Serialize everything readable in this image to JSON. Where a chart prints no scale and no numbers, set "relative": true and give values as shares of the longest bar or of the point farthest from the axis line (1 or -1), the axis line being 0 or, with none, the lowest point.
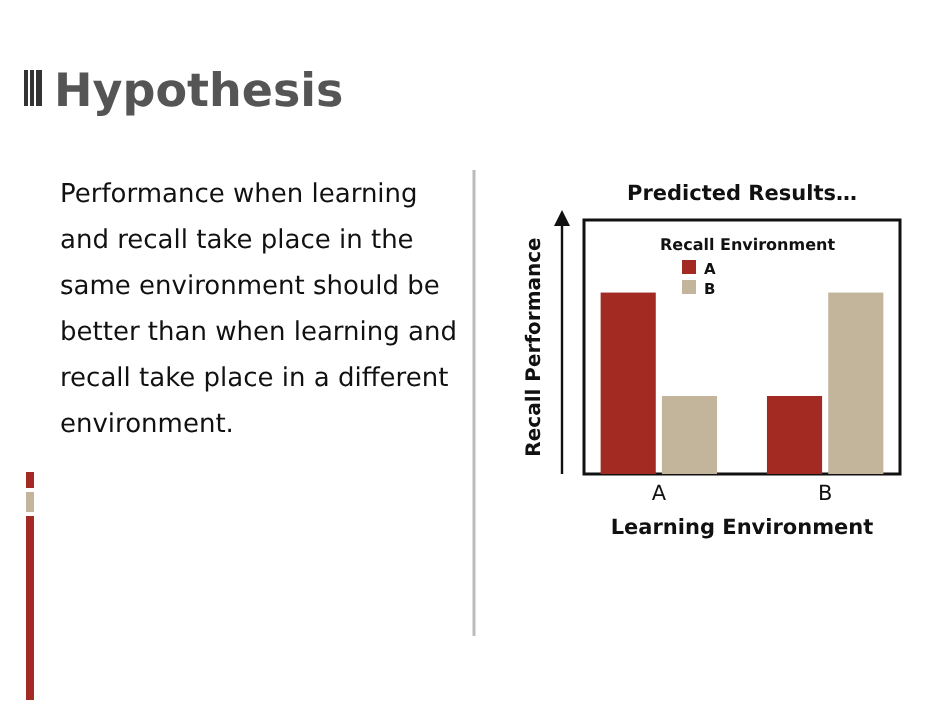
{
  "chart_data": {
    "type": "bar",
    "title": "Predicted Results…",
    "xlabel": "Learning Environment",
    "ylabel": "Recall Performance",
    "legend_title": "Recall Environment",
    "legend": "top",
    "relative": true,
    "categories": [
      "A",
      "B"
    ],
    "series": [
      {
        "name": "A",
        "color": "#a32a22",
        "values": [
          1,
          0.43
        ]
      },
      {
        "name": "B",
        "color": "#c2b59b",
        "values": [
          0.43,
          1
        ]
      }
    ],
    "annotations": [
      "Hypothesis",
      "Performance when learning and recall take place in the same environment should be better than when learning and recall take place in a different environment."
    ]
  }
}
